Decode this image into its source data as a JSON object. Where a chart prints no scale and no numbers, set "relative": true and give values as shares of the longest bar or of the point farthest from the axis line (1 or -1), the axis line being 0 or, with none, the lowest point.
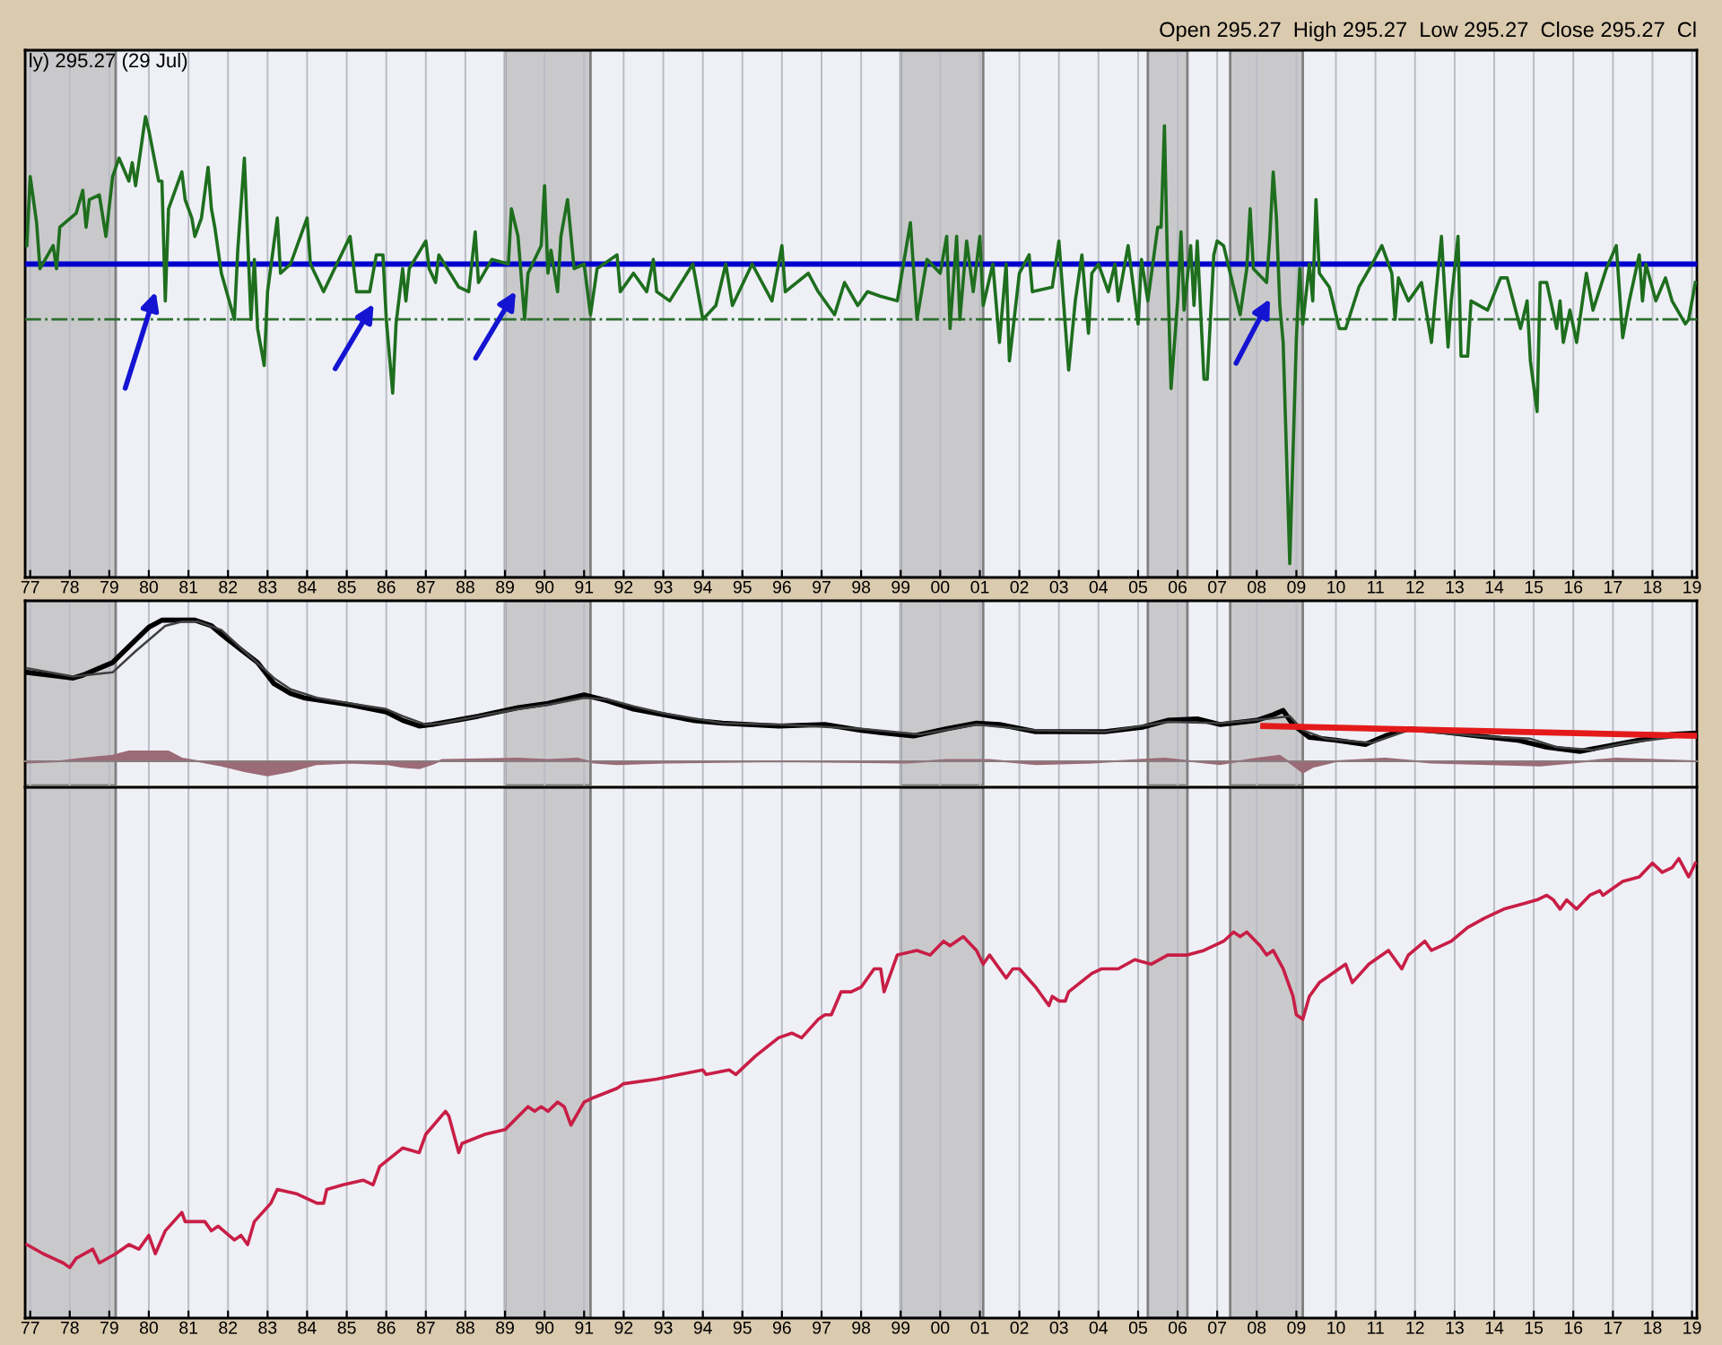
{
  "chart_data": [
    {
      "type": "line",
      "title": "ly) 295.27 (29 Jul)",
      "annotations": [
        "Open 295.27  High 295.27  Low 295.27  Close 295.27  Cl"
      ],
      "relative": true,
      "xlim": [
        "1976-11-15",
        "2019-02-15"
      ],
      "xticks": [
        {
          "value": "1977",
          "label": "77"
        },
        {
          "value": "1978",
          "label": "78"
        },
        {
          "value": "1979",
          "label": "79"
        },
        {
          "value": "1980",
          "label": "80"
        },
        {
          "value": "1981",
          "label": "81"
        },
        {
          "value": "1982",
          "label": "82"
        },
        {
          "value": "1983",
          "label": "83"
        },
        {
          "value": "1984",
          "label": "84"
        },
        {
          "value": "1985",
          "label": "85"
        },
        {
          "value": "1986",
          "label": "86"
        },
        {
          "value": "1987",
          "label": "87"
        },
        {
          "value": "1988",
          "label": "88"
        },
        {
          "value": "1989",
          "label": "89"
        },
        {
          "value": "1990",
          "label": "90"
        },
        {
          "value": "1991",
          "label": "91"
        },
        {
          "value": "1992",
          "label": "92"
        },
        {
          "value": "1993",
          "label": "93"
        },
        {
          "value": "1994",
          "label": "94"
        },
        {
          "value": "1995",
          "label": "95"
        },
        {
          "value": "1996",
          "label": "96"
        },
        {
          "value": "1997",
          "label": "97"
        },
        {
          "value": "1998",
          "label": "98"
        },
        {
          "value": "1999",
          "label": "99"
        },
        {
          "value": "2000",
          "label": "00"
        },
        {
          "value": "2001",
          "label": "01"
        },
        {
          "value": "2002",
          "label": "02"
        },
        {
          "value": "2003",
          "label": "03"
        },
        {
          "value": "2004",
          "label": "04"
        },
        {
          "value": "2005",
          "label": "05"
        },
        {
          "value": "2006",
          "label": "06"
        },
        {
          "value": "2007",
          "label": "07"
        },
        {
          "value": "2008",
          "label": "08"
        },
        {
          "value": "2009",
          "label": "09"
        },
        {
          "value": "2010",
          "label": "10"
        },
        {
          "value": "2011",
          "label": "11"
        },
        {
          "value": "2012",
          "label": "12"
        },
        {
          "value": "2013",
          "label": "13"
        },
        {
          "value": "2014",
          "label": "14"
        },
        {
          "value": "2015",
          "label": "15"
        },
        {
          "value": "2016",
          "label": "16"
        },
        {
          "value": "2017",
          "label": "17"
        },
        {
          "value": "2018",
          "label": "18"
        },
        {
          "value": "2019",
          "label": "19"
        }
      ],
      "tick_labels": "x",
      "grid": "x",
      "series": [
        {
          "color": "#1e6e1e",
          "x": [
            "1976-12",
            "1977-01",
            "1977-03",
            "1977-04",
            "1977-08",
            "1977-09",
            "1977-10",
            "1978-03",
            "1978-05",
            "1978-06",
            "1978-07",
            "1978-10",
            "1978-12",
            "1979-02",
            "1979-04",
            "1979-07",
            "1979-08",
            "1979-09",
            "1979-12",
            "1980-01",
            "1980-04",
            "1980-05",
            "1980-06",
            "1980-07",
            "1980-11",
            "1980-12",
            "1981-02",
            "1981-03",
            "1981-05",
            "1981-07",
            "1981-08",
            "1981-09",
            "1981-11",
            "1982-03",
            "1982-04",
            "1982-06",
            "1982-08",
            "1982-09",
            "1982-10",
            "1982-12",
            "1983-01",
            "1983-04",
            "1983-05",
            "1983-08",
            "1984-01",
            "1984-02",
            "1984-06",
            "1984-10",
            "1985-02",
            "1985-04",
            "1985-08",
            "1985-10",
            "1985-12",
            "1986-01",
            "1986-03",
            "1986-04",
            "1986-06",
            "1986-07",
            "1986-08",
            "1987-01",
            "1987-02",
            "1987-04",
            "1987-05",
            "1987-11",
            "1988-02",
            "1988-04",
            "1988-05",
            "1988-09",
            "1989-02",
            "1989-03",
            "1989-05",
            "1989-07",
            "1989-08",
            "1989-12",
            "1990-01",
            "1990-02",
            "1990-03",
            "1990-05",
            "1990-06",
            "1990-08",
            "1990-10",
            "1991-01",
            "1991-03",
            "1991-05",
            "1991-11",
            "1991-12",
            "1992-04",
            "1992-08",
            "1992-10",
            "1992-11",
            "1993-03",
            "1993-10",
            "1994-01",
            "1994-05",
            "1994-08",
            "1994-10",
            "1995-04",
            "1995-10",
            "1996-01",
            "1996-02",
            "1996-09",
            "1996-12",
            "1997-05",
            "1997-08",
            "1997-12",
            "1998-03",
            "1998-07",
            "1998-12",
            "1999-04",
            "1999-06",
            "1999-09",
            "2000-01",
            "2000-03",
            "2000-04",
            "2000-06",
            "2000-07",
            "2000-09",
            "2000-11",
            "2001-01",
            "2001-02",
            "2001-05",
            "2001-07",
            "2001-09",
            "2001-10",
            "2002-01",
            "2002-04",
            "2002-05",
            "2002-11",
            "2003-01",
            "2003-04",
            "2003-06",
            "2003-08",
            "2003-10",
            "2003-11",
            "2004-01",
            "2004-04",
            "2004-06",
            "2004-07",
            "2004-10",
            "2005-01",
            "2005-02",
            "2005-04",
            "2005-07",
            "2005-08",
            "2005-09",
            "2005-10",
            "2005-11",
            "2006-01",
            "2006-02",
            "2006-03",
            "2006-05",
            "2006-06",
            "2006-07",
            "2006-09",
            "2006-10",
            "2006-12",
            "2007-01",
            "2007-03",
            "2007-08",
            "2007-10",
            "2007-11",
            "2007-12",
            "2008-04",
            "2008-05",
            "2008-06",
            "2008-07",
            "2008-08",
            "2008-09",
            "2008-11",
            "2009-01",
            "2009-02",
            "2009-03",
            "2009-05",
            "2009-06",
            "2009-07",
            "2009-08",
            "2009-11",
            "2010-02",
            "2010-04",
            "2010-08",
            "2010-12",
            "2011-03",
            "2011-06",
            "2011-07",
            "2011-08",
            "2011-11",
            "2012-01",
            "2012-03",
            "2012-06",
            "2012-07",
            "2012-09",
            "2012-11",
            "2012-12",
            "2013-02",
            "2013-03",
            "2013-05",
            "2013-06",
            "2013-11",
            "2014-03",
            "2014-05",
            "2014-09",
            "2014-11",
            "2014-12",
            "2015-02",
            "2015-03",
            "2015-05",
            "2015-08",
            "2015-09",
            "2015-10",
            "2015-12",
            "2016-02",
            "2016-05",
            "2016-07",
            "2016-11",
            "2017-02",
            "2017-04",
            "2017-06",
            "2017-09",
            "2017-10",
            "2017-11",
            "2018-02",
            "2018-05",
            "2018-07",
            "2018-11",
            "2018-12",
            "2019-02"
          ],
          "values": [
            0.72,
            0.87,
            0.77,
            0.67,
            0.72,
            0.67,
            0.76,
            0.79,
            0.84,
            0.76,
            0.82,
            0.83,
            0.74,
            0.87,
            0.91,
            0.86,
            0.9,
            0.85,
            1.0,
            0.97,
            0.86,
            0.86,
            0.6,
            0.8,
            0.88,
            0.82,
            0.78,
            0.74,
            0.78,
            0.89,
            0.8,
            0.76,
            0.66,
            0.56,
            0.71,
            0.91,
            0.56,
            0.69,
            0.54,
            0.46,
            0.62,
            0.78,
            0.66,
            0.68,
            0.78,
            0.68,
            0.62,
            0.68,
            0.74,
            0.62,
            0.62,
            0.7,
            0.7,
            0.56,
            0.4,
            0.55,
            0.67,
            0.6,
            0.67,
            0.73,
            0.67,
            0.64,
            0.7,
            0.63,
            0.62,
            0.75,
            0.64,
            0.69,
            0.68,
            0.8,
            0.74,
            0.56,
            0.66,
            0.72,
            0.85,
            0.66,
            0.71,
            0.62,
            0.74,
            0.82,
            0.67,
            0.68,
            0.57,
            0.67,
            0.7,
            0.62,
            0.66,
            0.62,
            0.69,
            0.62,
            0.6,
            0.68,
            0.56,
            0.59,
            0.68,
            0.59,
            0.68,
            0.6,
            0.72,
            0.62,
            0.66,
            0.62,
            0.57,
            0.64,
            0.59,
            0.62,
            0.61,
            0.6,
            0.77,
            0.56,
            0.69,
            0.66,
            0.74,
            0.54,
            0.74,
            0.56,
            0.73,
            0.62,
            0.74,
            0.59,
            0.68,
            0.51,
            0.68,
            0.47,
            0.66,
            0.7,
            0.62,
            0.63,
            0.73,
            0.45,
            0.6,
            0.7,
            0.53,
            0.66,
            0.68,
            0.62,
            0.68,
            0.6,
            0.72,
            0.55,
            0.69,
            0.6,
            0.76,
            0.76,
            0.98,
            0.66,
            0.41,
            0.6,
            0.75,
            0.58,
            0.72,
            0.59,
            0.73,
            0.43,
            0.43,
            0.7,
            0.73,
            0.72,
            0.57,
            0.67,
            0.8,
            0.67,
            0.64,
            0.74,
            0.88,
            0.78,
            0.59,
            0.51,
            0.03,
            0.52,
            0.67,
            0.55,
            0.68,
            0.6,
            0.82,
            0.66,
            0.63,
            0.54,
            0.54,
            0.63,
            0.68,
            0.72,
            0.66,
            0.56,
            0.65,
            0.6,
            0.62,
            0.64,
            0.51,
            0.59,
            0.74,
            0.5,
            0.6,
            0.74,
            0.48,
            0.48,
            0.6,
            0.58,
            0.65,
            0.65,
            0.54,
            0.6,
            0.47,
            0.36,
            0.64,
            0.64,
            0.54,
            0.6,
            0.51,
            0.58,
            0.51,
            0.66,
            0.58,
            0.67,
            0.72,
            0.52,
            0.6,
            0.7,
            0.6,
            0.68,
            0.6,
            0.65,
            0.6,
            0.55,
            0.56,
            0.64
          ]
        }
      ],
      "ref_lines": [
        {
          "axis": "y",
          "value": 0.68,
          "color": "#0000cc",
          "line_style": "solid"
        },
        {
          "axis": "y",
          "value": 0.56,
          "color": "#2d6e2d",
          "line_style": "dashdot"
        }
      ],
      "bands": [
        {
          "axis": "x",
          "from": "1976-11-15",
          "to": "1979-03",
          "color": "#c9c9cb"
        },
        {
          "axis": "x",
          "from": "1989-01",
          "to": "1991-03",
          "color": "#c9c9cb"
        },
        {
          "axis": "x",
          "from": "1999-01",
          "to": "2001-02",
          "color": "#c9c9cb"
        },
        {
          "axis": "x",
          "from": "2005-04",
          "to": "2006-04",
          "color": "#c9c9cb"
        },
        {
          "axis": "x",
          "from": "2007-05",
          "to": "2009-03",
          "color": "#c9c9cb"
        }
      ]
    },
    {
      "type": "line",
      "relative": true,
      "xlim": [
        "1976-11-15",
        "2019-02-15"
      ],
      "xticks": [
        {
          "value": "1977",
          "label": null
        },
        {
          "value": "1978",
          "label": null
        },
        {
          "value": "1979",
          "label": null
        },
        {
          "value": "1980",
          "label": null
        },
        {
          "value": "1981",
          "label": null
        },
        {
          "value": "1982",
          "label": null
        },
        {
          "value": "1983",
          "label": null
        },
        {
          "value": "1984",
          "label": null
        },
        {
          "value": "1985",
          "label": null
        },
        {
          "value": "1986",
          "label": null
        },
        {
          "value": "1987",
          "label": null
        },
        {
          "value": "1988",
          "label": null
        },
        {
          "value": "1989",
          "label": null
        },
        {
          "value": "1990",
          "label": null
        },
        {
          "value": "1991",
          "label": null
        },
        {
          "value": "1992",
          "label": null
        },
        {
          "value": "1993",
          "label": null
        },
        {
          "value": "1994",
          "label": null
        },
        {
          "value": "1995",
          "label": null
        },
        {
          "value": "1996",
          "label": null
        },
        {
          "value": "1997",
          "label": null
        },
        {
          "value": "1998",
          "label": null
        },
        {
          "value": "1999",
          "label": null
        },
        {
          "value": "2000",
          "label": null
        },
        {
          "value": "2001",
          "label": null
        },
        {
          "value": "2002",
          "label": null
        },
        {
          "value": "2003",
          "label": null
        },
        {
          "value": "2004",
          "label": null
        },
        {
          "value": "2005",
          "label": null
        },
        {
          "value": "2006",
          "label": null
        },
        {
          "value": "2007",
          "label": null
        },
        {
          "value": "2008",
          "label": null
        },
        {
          "value": "2009",
          "label": null
        },
        {
          "value": "2010",
          "label": null
        },
        {
          "value": "2011",
          "label": null
        },
        {
          "value": "2012",
          "label": null
        },
        {
          "value": "2013",
          "label": null
        },
        {
          "value": "2014",
          "label": null
        },
        {
          "value": "2015",
          "label": null
        },
        {
          "value": "2016",
          "label": null
        },
        {
          "value": "2017",
          "label": null
        },
        {
          "value": "2018",
          "label": null
        },
        {
          "value": "2019",
          "label": null
        }
      ],
      "tick_labels": false,
      "grid": "x",
      "series": [
        {
          "color": "#000000",
          "x": [
            "1976-12",
            "1977-07",
            "1978-02",
            "1978-05",
            "1979-02",
            "1979-09",
            "1980-01",
            "1980-05",
            "1980-09",
            "1981-03",
            "1981-08",
            "1981-11",
            "1982-05",
            "1982-10",
            "1983-03",
            "1983-08",
            "1983-12",
            "1985-02",
            "1986-01",
            "1986-06",
            "1986-11",
            "1987-03",
            "1988-05",
            "1989-05",
            "1990-02",
            "1991-01",
            "1991-08",
            "1992-04",
            "1993-01",
            "1993-10",
            "1994-07",
            "1995-12",
            "1997-02",
            "1998-01",
            "1998-08",
            "1999-05",
            "2000-03",
            "2000-12",
            "2001-07",
            "2002-06",
            "2004-03",
            "2005-02",
            "2005-10",
            "2006-07",
            "2007-02",
            "2008-01",
            "2008-06",
            "2008-09",
            "2008-12",
            "2009-05",
            "2010-01",
            "2010-10",
            "2011-04",
            "2011-11",
            "2012-09",
            "2013-08",
            "2014-08",
            "2015-05",
            "2016-03",
            "2017-02",
            "2017-09",
            "2018-07",
            "2019-02"
          ],
          "values": [
            0.63,
            0.61,
            0.59,
            0.61,
            0.7,
            0.86,
            0.95,
            1.0,
            1.0,
            1.0,
            0.96,
            0.9,
            0.79,
            0.7,
            0.55,
            0.48,
            0.45,
            0.4,
            0.35,
            0.29,
            0.25,
            0.26,
            0.32,
            0.38,
            0.41,
            0.47,
            0.43,
            0.37,
            0.33,
            0.29,
            0.27,
            0.25,
            0.26,
            0.22,
            0.2,
            0.18,
            0.23,
            0.27,
            0.26,
            0.21,
            0.21,
            0.24,
            0.29,
            0.3,
            0.26,
            0.29,
            0.33,
            0.36,
            0.26,
            0.17,
            0.15,
            0.12,
            0.18,
            0.23,
            0.21,
            0.18,
            0.15,
            0.1,
            0.07,
            0.12,
            0.15,
            0.19,
            0.2
          ]
        },
        {
          "color": "#404040",
          "x": [
            "1976-12",
            "1978-02",
            "1979-02",
            "1979-09",
            "1980-06",
            "1980-11",
            "1981-04",
            "1981-11",
            "1982-06",
            "1983-03",
            "1983-08",
            "1984-04",
            "1985-02",
            "1986-01",
            "1986-06",
            "1987-01",
            "1987-06",
            "1988-05",
            "1989-05",
            "1990-02",
            "1991-01",
            "1991-08",
            "1992-04",
            "1993-01",
            "1994-07",
            "1995-12",
            "1998-01",
            "1999-07",
            "2000-12",
            "2002-06",
            "2004-03",
            "2005-10",
            "2007-02",
            "2008-04",
            "2008-11",
            "2009-03",
            "2009-10",
            "2010-12",
            "2011-11",
            "2013-08",
            "2014-12",
            "2015-08",
            "2016-07",
            "2017-05",
            "2019-02"
          ],
          "values": [
            0.66,
            0.6,
            0.63,
            0.78,
            0.96,
            0.99,
            0.99,
            0.93,
            0.78,
            0.59,
            0.51,
            0.45,
            0.41,
            0.37,
            0.32,
            0.26,
            0.27,
            0.32,
            0.37,
            0.4,
            0.45,
            0.44,
            0.39,
            0.34,
            0.27,
            0.26,
            0.23,
            0.19,
            0.26,
            0.22,
            0.21,
            0.28,
            0.27,
            0.3,
            0.32,
            0.22,
            0.16,
            0.13,
            0.22,
            0.18,
            0.16,
            0.1,
            0.08,
            0.13,
            0.19
          ]
        },
        {
          "type": "area",
          "color": "#9b6b77",
          "x": [
            "1976-12",
            "1977-10",
            "1978-05",
            "1979-02",
            "1979-07",
            "1980-01",
            "1980-07",
            "1980-11",
            "1981-04",
            "1981-11",
            "1982-06",
            "1983-01",
            "1983-08",
            "1984-04",
            "1985-02",
            "1986-01",
            "1986-06",
            "1986-11",
            "1987-03",
            "1987-06",
            "1989-05",
            "1990-02",
            "1990-11",
            "1991-04",
            "1991-11",
            "1993-01",
            "1995-12",
            "1999-03",
            "2000-03",
            "2001-04",
            "2002-06",
            "2003-11",
            "2005-09",
            "2007-02",
            "2008-01",
            "2008-08",
            "2008-11",
            "2009-03",
            "2009-06",
            "2010-01",
            "2011-04",
            "2012-06",
            "2015-03",
            "2017-02",
            "2019-02"
          ],
          "values": [
            -0.01,
            0.0,
            0.02,
            0.04,
            0.07,
            0.07,
            0.07,
            0.02,
            0.0,
            -0.03,
            -0.07,
            -0.1,
            -0.07,
            -0.02,
            -0.01,
            -0.02,
            -0.04,
            -0.05,
            -0.02,
            0.01,
            0.02,
            0.01,
            0.02,
            -0.01,
            -0.02,
            -0.01,
            0.0,
            -0.01,
            0.01,
            0.01,
            -0.02,
            -0.01,
            0.02,
            -0.02,
            0.02,
            0.04,
            -0.01,
            -0.08,
            -0.04,
            0.0,
            0.02,
            -0.01,
            -0.03,
            0.02,
            0.0
          ]
        },
        {
          "type": "line",
          "color": "#e41a1a",
          "x": [
            "2008-03",
            "2019-02-15"
          ],
          "values": [
            0.25,
            0.18
          ]
        }
      ],
      "bands": [
        {
          "axis": "x",
          "from": "1976-11-15",
          "to": "1979-03",
          "color": "#c9c9cb"
        },
        {
          "axis": "x",
          "from": "1989-01",
          "to": "1991-03",
          "color": "#c9c9cb"
        },
        {
          "axis": "x",
          "from": "1999-01",
          "to": "2001-02",
          "color": "#c9c9cb"
        },
        {
          "axis": "x",
          "from": "2005-04",
          "to": "2006-04",
          "color": "#c9c9cb"
        },
        {
          "axis": "x",
          "from": "2007-05",
          "to": "2009-03",
          "color": "#c9c9cb"
        }
      ]
    },
    {
      "type": "line",
      "relative": true,
      "xlim": [
        "1976-11-15",
        "2019-02-15"
      ],
      "xticks": [
        {
          "value": "1977",
          "label": "77"
        },
        {
          "value": "1978",
          "label": "78"
        },
        {
          "value": "1979",
          "label": "79"
        },
        {
          "value": "1980",
          "label": "80"
        },
        {
          "value": "1981",
          "label": "81"
        },
        {
          "value": "1982",
          "label": "82"
        },
        {
          "value": "1983",
          "label": "83"
        },
        {
          "value": "1984",
          "label": "84"
        },
        {
          "value": "1985",
          "label": "85"
        },
        {
          "value": "1986",
          "label": "86"
        },
        {
          "value": "1987",
          "label": "87"
        },
        {
          "value": "1988",
          "label": "88"
        },
        {
          "value": "1989",
          "label": "89"
        },
        {
          "value": "1990",
          "label": "90"
        },
        {
          "value": "1991",
          "label": "91"
        },
        {
          "value": "1992",
          "label": "92"
        },
        {
          "value": "1993",
          "label": "93"
        },
        {
          "value": "1994",
          "label": "94"
        },
        {
          "value": "1995",
          "label": "95"
        },
        {
          "value": "1996",
          "label": "96"
        },
        {
          "value": "1997",
          "label": "97"
        },
        {
          "value": "1998",
          "label": "98"
        },
        {
          "value": "1999",
          "label": "99"
        },
        {
          "value": "2000",
          "label": "00"
        },
        {
          "value": "2001",
          "label": "01"
        },
        {
          "value": "2002",
          "label": "02"
        },
        {
          "value": "2003",
          "label": "03"
        },
        {
          "value": "2004",
          "label": "04"
        },
        {
          "value": "2005",
          "label": "05"
        },
        {
          "value": "2006",
          "label": "06"
        },
        {
          "value": "2007",
          "label": "07"
        },
        {
          "value": "2008",
          "label": "08"
        },
        {
          "value": "2009",
          "label": "09"
        },
        {
          "value": "2010",
          "label": "10"
        },
        {
          "value": "2011",
          "label": "11"
        },
        {
          "value": "2012",
          "label": "12"
        },
        {
          "value": "2013",
          "label": "13"
        },
        {
          "value": "2014",
          "label": "14"
        },
        {
          "value": "2015",
          "label": "15"
        },
        {
          "value": "2016",
          "label": "16"
        },
        {
          "value": "2017",
          "label": "17"
        },
        {
          "value": "2018",
          "label": "18"
        },
        {
          "value": "2019",
          "label": "19"
        }
      ],
      "tick_labels": "x",
      "grid": "x",
      "series": [
        {
          "color": "#c81e46",
          "x": [
            "1976-12",
            "1977-05",
            "1977-08",
            "1977-11",
            "1978-01",
            "1978-03",
            "1978-08",
            "1978-10",
            "1979-03",
            "1979-07",
            "1979-10",
            "1980-01",
            "1980-03",
            "1980-06",
            "1980-11",
            "1980-12",
            "1981-06",
            "1981-08",
            "1981-10",
            "1982-03",
            "1982-05",
            "1982-07",
            "1982-09",
            "1983-02",
            "1983-04",
            "1983-10",
            "1984-04",
            "1984-06",
            "1984-07",
            "1984-12",
            "1985-06",
            "1985-09",
            "1985-11",
            "1986-06",
            "1986-11",
            "1987-01",
            "1987-07",
            "1987-08",
            "1987-11",
            "1987-12",
            "1988-07",
            "1989-01",
            "1989-08",
            "1989-10",
            "1989-12",
            "1990-02",
            "1990-05",
            "1990-07",
            "1990-09",
            "1991-01",
            "1991-04",
            "1991-11",
            "1992-01",
            "1992-11",
            "1993-06",
            "1994-01",
            "1994-02",
            "1994-09",
            "1994-11",
            "1995-05",
            "1995-12",
            "1996-04",
            "1996-07",
            "1996-12",
            "1997-02",
            "1997-04",
            "1997-07",
            "1997-08",
            "1997-10",
            "1998-01",
            "1998-05",
            "1998-07",
            "1998-08",
            "1998-12",
            "1999-06",
            "1999-10",
            "2000-02",
            "2000-04",
            "2000-08",
            "2000-12",
            "2001-02",
            "2001-04",
            "2001-09",
            "2001-11",
            "2002-01",
            "2002-06",
            "2002-10",
            "2002-11",
            "2003-01",
            "2003-03",
            "2003-04",
            "2003-11",
            "2004-02",
            "2004-07",
            "2004-12",
            "2005-05",
            "2005-10",
            "2006-04",
            "2006-09",
            "2007-03",
            "2007-06",
            "2007-08",
            "2007-10",
            "2008-02",
            "2008-04",
            "2008-06",
            "2008-09",
            "2008-12",
            "2009-01",
            "2009-03",
            "2009-05",
            "2009-08",
            "2009-12",
            "2010-04",
            "2010-06",
            "2010-11",
            "2011-05",
            "2011-09",
            "2011-11",
            "2012-04",
            "2012-06",
            "2012-12",
            "2013-05",
            "2013-10",
            "2014-04",
            "2014-09",
            "2015-02",
            "2015-05",
            "2015-07",
            "2015-09",
            "2015-11",
            "2016-02",
            "2016-06",
            "2016-09",
            "2016-10",
            "2017-04",
            "2017-09",
            "2018-01",
            "2018-04",
            "2018-07",
            "2018-09",
            "2018-12",
            "2019-02"
          ],
          "values": [
            0.16,
            0.14,
            0.13,
            0.12,
            0.11,
            0.13,
            0.15,
            0.12,
            0.14,
            0.16,
            0.15,
            0.18,
            0.14,
            0.19,
            0.23,
            0.21,
            0.21,
            0.19,
            0.2,
            0.17,
            0.18,
            0.16,
            0.21,
            0.25,
            0.28,
            0.27,
            0.25,
            0.25,
            0.28,
            0.29,
            0.3,
            0.29,
            0.33,
            0.37,
            0.36,
            0.4,
            0.45,
            0.44,
            0.36,
            0.38,
            0.4,
            0.41,
            0.46,
            0.45,
            0.46,
            0.45,
            0.47,
            0.46,
            0.42,
            0.47,
            0.48,
            0.5,
            0.51,
            0.52,
            0.53,
            0.54,
            0.53,
            0.54,
            0.53,
            0.57,
            0.61,
            0.62,
            0.61,
            0.65,
            0.66,
            0.66,
            0.71,
            0.71,
            0.71,
            0.72,
            0.76,
            0.76,
            0.71,
            0.79,
            0.8,
            0.79,
            0.82,
            0.81,
            0.83,
            0.8,
            0.77,
            0.79,
            0.74,
            0.76,
            0.76,
            0.72,
            0.68,
            0.7,
            0.69,
            0.69,
            0.71,
            0.75,
            0.76,
            0.76,
            0.78,
            0.77,
            0.79,
            0.79,
            0.8,
            0.82,
            0.84,
            0.83,
            0.84,
            0.81,
            0.79,
            0.8,
            0.76,
            0.7,
            0.66,
            0.65,
            0.7,
            0.73,
            0.75,
            0.77,
            0.73,
            0.77,
            0.8,
            0.76,
            0.79,
            0.82,
            0.8,
            0.82,
            0.85,
            0.87,
            0.89,
            0.9,
            0.91,
            0.92,
            0.91,
            0.89,
            0.91,
            0.89,
            0.92,
            0.93,
            0.92,
            0.95,
            0.96,
            0.99,
            0.97,
            0.98,
            1.0,
            0.96,
            0.99
          ]
        }
      ],
      "bands": [
        {
          "axis": "x",
          "from": "1976-11-15",
          "to": "1979-03",
          "color": "#c9c9cb"
        },
        {
          "axis": "x",
          "from": "1989-01",
          "to": "1991-03",
          "color": "#c9c9cb"
        },
        {
          "axis": "x",
          "from": "1999-01",
          "to": "2001-02",
          "color": "#c9c9cb"
        },
        {
          "axis": "x",
          "from": "2005-04",
          "to": "2006-04",
          "color": "#c9c9cb"
        },
        {
          "axis": "x",
          "from": "2007-05",
          "to": "2009-03",
          "color": "#c9c9cb"
        }
      ]
    }
  ]
}
